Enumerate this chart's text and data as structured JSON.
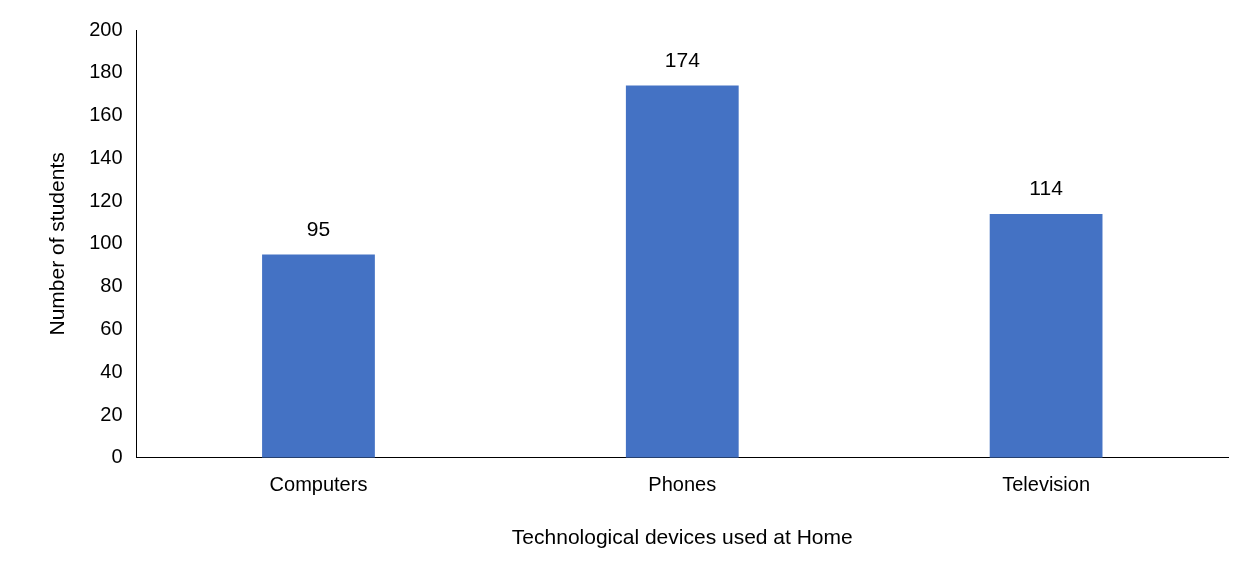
{
  "chart_data": {
    "type": "bar",
    "xlabel": "Technological devices used at Home",
    "ylabel": "Number of students",
    "categories": [
      "Computers",
      "Phones",
      "Television"
    ],
    "values": [
      95,
      174,
      114
    ],
    "color": "#4472c4",
    "ylim": [
      0,
      200
    ],
    "yticks": [
      0,
      20,
      40,
      60,
      80,
      100,
      120,
      140,
      160,
      180,
      200
    ],
    "grid": false,
    "legend": false,
    "data_labels": true
  }
}
